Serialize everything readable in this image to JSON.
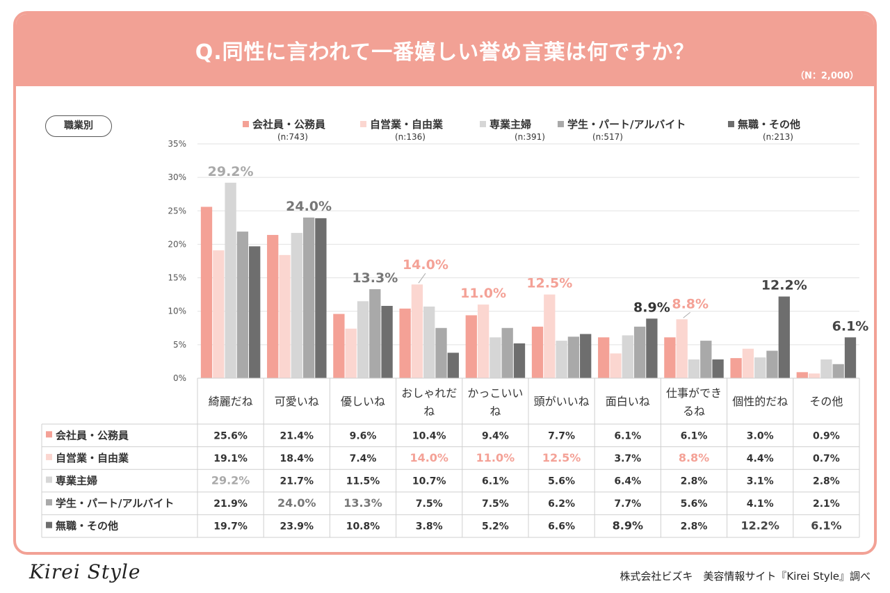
{
  "title": "Q.同性に言われて一番嬉しい誉め言葉は何ですか？",
  "sample_note": "（N：2,000）",
  "segment_label": "職業別",
  "footer": {
    "logo": "Kirei Style",
    "credit": "株式会社ビズキ　美容情報サイト『Kirei Style』調べ"
  },
  "chart_data": {
    "type": "bar",
    "categories": [
      "綺麗だね",
      "可愛いね",
      "優しいね",
      "おしゃれだね",
      "かっこいいね",
      "頭がいいね",
      "面白いね",
      "仕事ができるね",
      "個性的だね",
      "その他"
    ],
    "category_lines": [
      [
        "綺麗だね"
      ],
      [
        "可愛いね"
      ],
      [
        "優しいね"
      ],
      [
        "おしゃれだ",
        "ね"
      ],
      [
        "かっこいい",
        "ね"
      ],
      [
        "頭がいいね"
      ],
      [
        "面白いね"
      ],
      [
        "仕事ができ",
        "るね"
      ],
      [
        "個性的だね"
      ],
      [
        "その他"
      ]
    ],
    "ylim": [
      0,
      35
    ],
    "yticks": [
      0,
      5,
      10,
      15,
      20,
      25,
      30,
      35
    ],
    "ytick_labels": [
      "0%",
      "5%",
      "10%",
      "15%",
      "20%",
      "25%",
      "30%",
      "35%"
    ],
    "grid": true,
    "legend_position": "top",
    "series": [
      {
        "name": "会社員・公務員",
        "n": "(n:743)",
        "color": "#f4a196",
        "values": [
          25.6,
          21.4,
          9.6,
          10.4,
          9.4,
          7.7,
          6.1,
          6.1,
          3.0,
          0.9
        ],
        "labels": [
          "25.6%",
          "21.4%",
          "9.6%",
          "10.4%",
          "9.4%",
          "7.7%",
          "6.1%",
          "6.1%",
          "3.0%",
          "0.9%"
        ]
      },
      {
        "name": "自営業・自由業",
        "n": "(n:136)",
        "color": "#fbd6d0",
        "values": [
          19.1,
          18.4,
          7.4,
          14.0,
          11.0,
          12.5,
          3.7,
          8.8,
          4.4,
          0.7
        ],
        "labels": [
          "19.1%",
          "18.4%",
          "7.4%",
          "14.0%",
          "11.0%",
          "12.5%",
          "3.7%",
          "8.8%",
          "4.4%",
          "0.7%"
        ]
      },
      {
        "name": "専業主婦",
        "n": "(n:391)",
        "color": "#d6d6d6",
        "values": [
          29.2,
          21.7,
          11.5,
          10.7,
          6.1,
          5.6,
          6.4,
          2.8,
          3.1,
          2.8
        ],
        "labels": [
          "29.2%",
          "21.7%",
          "11.5%",
          "10.7%",
          "6.1%",
          "5.6%",
          "6.4%",
          "2.8%",
          "3.1%",
          "2.8%"
        ]
      },
      {
        "name": "学生・パート/アルバイト",
        "n": "(n:517)",
        "color": "#a9a9a9",
        "values": [
          21.9,
          24.0,
          13.3,
          7.5,
          7.5,
          6.2,
          7.7,
          5.6,
          4.1,
          2.1
        ],
        "labels": [
          "21.9%",
          "24.0%",
          "13.3%",
          "7.5%",
          "7.5%",
          "6.2%",
          "7.7%",
          "5.6%",
          "4.1%",
          "2.1%"
        ]
      },
      {
        "name": "無職・その他",
        "n": "(n:213)",
        "color": "#6e6e6e",
        "values": [
          19.7,
          23.9,
          10.8,
          3.8,
          5.2,
          6.6,
          8.9,
          2.8,
          12.2,
          6.1
        ],
        "labels": [
          "19.7%",
          "23.9%",
          "10.8%",
          "3.8%",
          "5.2%",
          "6.6%",
          "8.9%",
          "2.8%",
          "12.2%",
          "6.1%"
        ]
      }
    ],
    "highlights": [
      {
        "category": 0,
        "series": 2,
        "label": "29.2%",
        "color": "#a9a9a9"
      },
      {
        "category": 1,
        "series": 3,
        "label": "24.0%",
        "color": "#777777"
      },
      {
        "category": 2,
        "series": 3,
        "label": "13.3%",
        "color": "#777777"
      },
      {
        "category": 3,
        "series": 1,
        "label": "14.0%",
        "color": "#f4a196"
      },
      {
        "category": 4,
        "series": 1,
        "label": "11.0%",
        "color": "#f4a196"
      },
      {
        "category": 5,
        "series": 1,
        "label": "12.5%",
        "color": "#f4a196"
      },
      {
        "category": 6,
        "series": 4,
        "label": "8.9%",
        "color": "#333333"
      },
      {
        "category": 7,
        "series": 1,
        "label": "8.8%",
        "color": "#f4a196"
      },
      {
        "category": 8,
        "series": 4,
        "label": "12.2%",
        "color": "#444444"
      },
      {
        "category": 9,
        "series": 4,
        "label": "6.1%",
        "color": "#444444"
      }
    ]
  }
}
